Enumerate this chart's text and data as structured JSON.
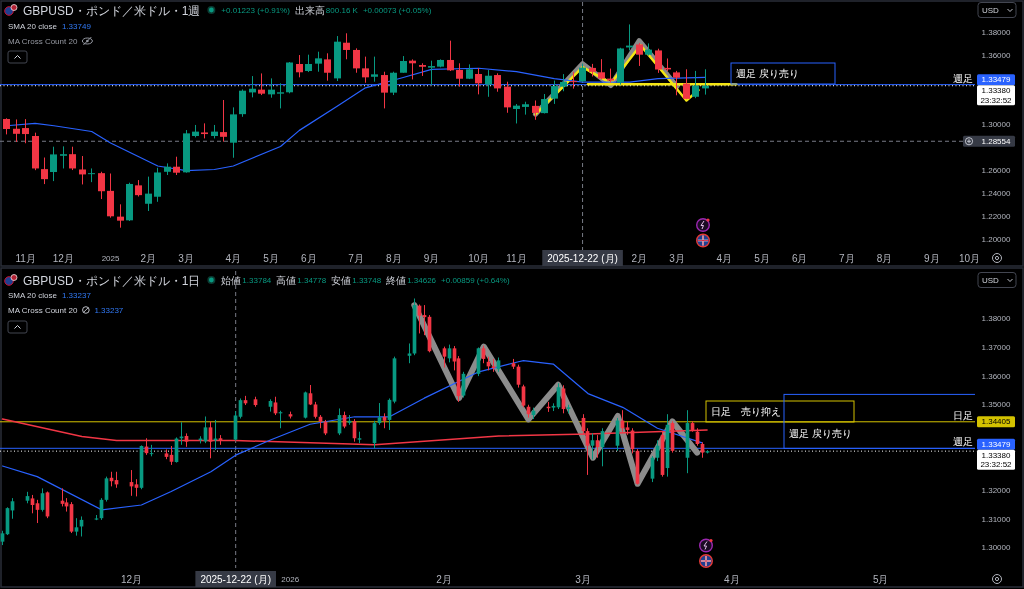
{
  "chart_data": [
    {
      "type": "candlestick",
      "title": "GBPUSD・ポンド／米ドル・1週",
      "annotations": [
        "+0.01223 (+0.91%)",
        "出来高",
        "800.16 K",
        "+0.00073 (+0.05%)",
        "SMA 20 close",
        "1.33749",
        "MA Cross Count 20",
        "USD",
        "週足 戻り売り",
        {
          "text": "週足",
          "y": 1.33479
        },
        "23:32:52"
      ],
      "xlim": [
        "2024-10-16",
        "2026-10-09"
      ],
      "xticks": [
        {
          "value": "2024-11-04",
          "label": "11月"
        },
        {
          "value": "2024-12-02",
          "label": "12月"
        },
        {
          "value": "2025-01-06",
          "label": "2025"
        },
        {
          "value": "2025-02-03",
          "label": "2月"
        },
        {
          "value": "2025-03-03",
          "label": "3月"
        },
        {
          "value": "2025-04-07",
          "label": "4月"
        },
        {
          "value": "2025-05-05",
          "label": "5月"
        },
        {
          "value": "2025-06-02",
          "label": "6月"
        },
        {
          "value": "2025-07-07",
          "label": "7月"
        },
        {
          "value": "2025-08-04",
          "label": "8月"
        },
        {
          "value": "2025-09-01",
          "label": "9月"
        },
        {
          "value": "2025-10-06",
          "label": "10月"
        },
        {
          "value": "2025-11-03",
          "label": "11月"
        },
        {
          "value": "2026-02-02",
          "label": "2月"
        },
        {
          "value": "2026-03-02",
          "label": "3月"
        },
        {
          "value": "2026-04-06",
          "label": "4月"
        },
        {
          "value": "2026-05-04",
          "label": "5月"
        },
        {
          "value": "2026-06-01",
          "label": "6月"
        },
        {
          "value": "2026-07-06",
          "label": "7月"
        },
        {
          "value": "2026-08-03",
          "label": "8月"
        },
        {
          "value": "2026-09-07",
          "label": "9月"
        },
        {
          "value": "2026-10-05",
          "label": "10月"
        }
      ],
      "ylim": [
        1.191,
        1.4066
      ],
      "yticks": [
        {
          "value": 1.2,
          "label": "1.20000"
        },
        {
          "value": 1.22,
          "label": "1.22000"
        },
        {
          "value": 1.24,
          "label": "1.24000"
        },
        {
          "value": 1.26,
          "label": "1.26000"
        },
        {
          "value": 1.3,
          "label": "1.30000"
        },
        {
          "value": 1.36,
          "label": "1.36000"
        },
        {
          "value": 1.38,
          "label": "1.38000"
        }
      ],
      "series": [
        {
          "type": "candlestick",
          "x": [
            "2024-10-21",
            "2024-10-28",
            "2024-11-04",
            "2024-11-11",
            "2024-11-18",
            "2024-11-25",
            "2024-12-02",
            "2024-12-09",
            "2024-12-16",
            "2024-12-23",
            "2024-12-30",
            "2025-01-06",
            "2025-01-13",
            "2025-01-20",
            "2025-01-27",
            "2025-02-03",
            "2025-02-10",
            "2025-02-17",
            "2025-02-24",
            "2025-03-03",
            "2025-03-10",
            "2025-03-17",
            "2025-03-24",
            "2025-03-31",
            "2025-04-07",
            "2025-04-14",
            "2025-04-21",
            "2025-04-28",
            "2025-05-05",
            "2025-05-12",
            "2025-05-19",
            "2025-05-26",
            "2025-06-02",
            "2025-06-09",
            "2025-06-16",
            "2025-06-23",
            "2025-06-30",
            "2025-07-07",
            "2025-07-14",
            "2025-07-21",
            "2025-07-28",
            "2025-08-04",
            "2025-08-11",
            "2025-08-18",
            "2025-08-25",
            "2025-09-01",
            "2025-09-08",
            "2025-09-15",
            "2025-09-22",
            "2025-09-29",
            "2025-10-06",
            "2025-10-13",
            "2025-10-20",
            "2025-10-27",
            "2025-11-03",
            "2025-11-10",
            "2025-11-17",
            "2025-11-24",
            "2025-12-01",
            "2025-12-08",
            "2025-12-15",
            "2025-12-22",
            "2025-12-29",
            "2026-01-05",
            "2026-01-12",
            "2026-01-19",
            "2026-01-26",
            "2026-02-02",
            "2026-02-09",
            "2026-02-16",
            "2026-02-23",
            "2026-03-02",
            "2026-03-09",
            "2026-03-16",
            "2026-03-23"
          ],
          "ohlc": [
            [
              1.3049,
              1.3055,
              1.2915,
              1.2962
            ],
            [
              1.2964,
              1.3045,
              1.285,
              1.292
            ],
            [
              1.297,
              1.3048,
              1.2838,
              1.2918
            ],
            [
              1.2901,
              1.293,
              1.2604,
              1.2619
            ],
            [
              1.2613,
              1.2714,
              1.2483,
              1.2526
            ],
            [
              1.2588,
              1.2808,
              1.2509,
              1.2741
            ],
            [
              1.2729,
              1.2811,
              1.2619,
              1.2743
            ],
            [
              1.2743,
              1.2808,
              1.2605,
              1.2619
            ],
            [
              1.261,
              1.2727,
              1.248,
              1.2567
            ],
            [
              1.257,
              1.2619,
              1.25,
              1.2578
            ],
            [
              1.2578,
              1.259,
              1.2353,
              1.2421
            ],
            [
              1.2424,
              1.2575,
              1.2191,
              1.2203
            ],
            [
              1.22,
              1.2307,
              1.2104,
              1.2165
            ],
            [
              1.2168,
              1.2495,
              1.2162,
              1.2484
            ],
            [
              1.2472,
              1.2518,
              1.2375,
              1.2387
            ],
            [
              1.2312,
              1.2548,
              1.2249,
              1.24
            ],
            [
              1.2373,
              1.2625,
              1.2329,
              1.2584
            ],
            [
              1.259,
              1.2663,
              1.2562,
              1.2634
            ],
            [
              1.2634,
              1.2721,
              1.2562,
              1.2582
            ],
            [
              1.2585,
              1.2953,
              1.2582,
              1.2924
            ],
            [
              1.2901,
              1.2997,
              1.2889,
              1.2939
            ],
            [
              1.2932,
              1.3011,
              1.288,
              1.2918
            ],
            [
              1.2901,
              1.2997,
              1.288,
              1.2939
            ],
            [
              1.2935,
              1.3214,
              1.2852,
              1.2894
            ],
            [
              1.2843,
              1.315,
              1.2712,
              1.3089
            ],
            [
              1.3091,
              1.3306,
              1.3068,
              1.3295
            ],
            [
              1.328,
              1.3422,
              1.3237,
              1.3312
            ],
            [
              1.3304,
              1.3445,
              1.3257,
              1.3269
            ],
            [
              1.3263,
              1.3402,
              1.3234,
              1.3304
            ],
            [
              1.3269,
              1.3359,
              1.3141,
              1.3281
            ],
            [
              1.3281,
              1.3544,
              1.3272,
              1.354
            ],
            [
              1.3527,
              1.3605,
              1.3411,
              1.3455
            ],
            [
              1.3466,
              1.3608,
              1.3457,
              1.3527
            ],
            [
              1.353,
              1.3634,
              1.346,
              1.3576
            ],
            [
              1.3567,
              1.362,
              1.3382,
              1.3451
            ],
            [
              1.3402,
              1.377,
              1.3379,
              1.3721
            ],
            [
              1.3712,
              1.3794,
              1.3568,
              1.3649
            ],
            [
              1.3649,
              1.3663,
              1.3451,
              1.3489
            ],
            [
              1.3489,
              1.3591,
              1.3364,
              1.3411
            ],
            [
              1.3416,
              1.3591,
              1.3373,
              1.3437
            ],
            [
              1.3431,
              1.346,
              1.3141,
              1.3278
            ],
            [
              1.3278,
              1.346,
              1.3257,
              1.3451
            ],
            [
              1.3451,
              1.3596,
              1.3451,
              1.3553
            ],
            [
              1.3556,
              1.3567,
              1.3393,
              1.3533
            ],
            [
              1.3518,
              1.3533,
              1.3423,
              1.3503
            ],
            [
              1.3495,
              1.3556,
              1.3344,
              1.3509
            ],
            [
              1.3504,
              1.3567,
              1.3498,
              1.3562
            ],
            [
              1.3562,
              1.373,
              1.3466,
              1.3472
            ],
            [
              1.3475,
              1.3533,
              1.333,
              1.3399
            ],
            [
              1.3399,
              1.3524,
              1.3396,
              1.3481
            ],
            [
              1.344,
              1.3492,
              1.3263,
              1.3359
            ],
            [
              1.3349,
              1.3474,
              1.3242,
              1.3425
            ],
            [
              1.3431,
              1.3446,
              1.3286,
              1.3315
            ],
            [
              1.333,
              1.3373,
              1.3103,
              1.315
            ],
            [
              1.3136,
              1.3179,
              1.301,
              1.3165
            ],
            [
              1.3154,
              1.3199,
              1.3087,
              1.3177
            ],
            [
              1.3163,
              1.321,
              1.3042,
              1.3102
            ],
            [
              1.31,
              1.3266,
              1.3097,
              1.3222
            ],
            [
              1.3226,
              1.3383,
              1.318,
              1.3335
            ],
            [
              1.333,
              1.3439,
              1.329,
              1.3371
            ],
            [
              1.3378,
              1.3459,
              1.3313,
              1.3374
            ],
            [
              1.3377,
              1.3531,
              1.3371,
              1.3496
            ],
            [
              1.3493,
              1.3528,
              1.3418,
              1.3459
            ],
            [
              1.3455,
              1.3569,
              1.3394,
              1.34
            ],
            [
              1.34,
              1.3487,
              1.3366,
              1.3383
            ],
            [
              1.3366,
              1.3668,
              1.3348,
              1.3662
            ],
            [
              1.3671,
              1.3871,
              1.3645,
              1.3687
            ],
            [
              1.3697,
              1.371,
              1.351,
              1.3608
            ],
            [
              1.3608,
              1.3706,
              1.36,
              1.3652
            ],
            [
              1.3645,
              1.366,
              1.345,
              1.3479
            ],
            [
              1.3493,
              1.3575,
              1.3465,
              1.348
            ],
            [
              1.3454,
              1.3467,
              1.3255,
              1.3408
            ],
            [
              1.3357,
              1.3481,
              1.3221,
              1.3224
            ],
            [
              1.3242,
              1.3467,
              1.323,
              1.3339
            ],
            [
              1.3315,
              1.3481,
              1.3261,
              1.3338
            ]
          ],
          "colors": [
            "#f23645",
            "#f23645",
            "#f23645",
            "#f23645",
            "#f23645",
            "#089981",
            "#089981",
            "#f23645",
            "#f23645",
            "#089981",
            "#f23645",
            "#f23645",
            "#f23645",
            "#089981",
            "#f23645",
            "#089981",
            "#089981",
            "#089981",
            "#f23645",
            "#089981",
            "#089981",
            "#f23645",
            "#089981",
            "#f23645",
            "#089981",
            "#089981",
            "#089981",
            "#f23645",
            "#089981",
            "#089981",
            "#089981",
            "#f23645",
            "#089981",
            "#089981",
            "#f23645",
            "#089981",
            "#f23645",
            "#f23645",
            "#f23645",
            "#089981",
            "#f23645",
            "#089981",
            "#089981",
            "#f23645",
            "#f23645",
            "#089981",
            "#089981",
            "#f23645",
            "#f23645",
            "#089981",
            "#f23645",
            "#089981",
            "#f23645",
            "#f23645",
            "#089981",
            "#089981",
            "#f23645",
            "#089981",
            "#089981",
            "#089981",
            "#f23645",
            "#089981",
            "#f23645",
            "#f23645",
            "#f23645",
            "#089981",
            "#089981",
            "#f23645",
            "#089981",
            "#f23645",
            "#f23645",
            "#f23645",
            "#f23645",
            "#089981",
            "#089981"
          ]
        },
        {
          "type": "line",
          "color": "#8a8a8a",
          "x": [
            "2025-11-17",
            "2025-12-22",
            "2026-01-12",
            "2026-02-02",
            "2026-03-02"
          ],
          "values": [
            1.309,
            1.353,
            1.334,
            1.373,
            1.333
          ]
        },
        {
          "type": "line",
          "color": "#f5e614",
          "x": [
            "2025-11-17",
            "2025-12-22",
            "2026-01-12",
            "2026-02-03",
            "2026-03-09",
            "2026-03-18"
          ],
          "values": [
            1.309,
            1.35,
            1.336,
            1.369,
            1.321,
            1.33
          ]
        },
        {
          "type": "line",
          "color": "#f5e614",
          "x": [
            "2025-12-26",
            "2026-04-15"
          ],
          "values": [
            1.335,
            1.335
          ]
        },
        {
          "type": "line",
          "color": "#2962ff",
          "x": [
            "2024-10-21",
            "2024-11-11",
            "2024-11-25",
            "2024-12-23",
            "2025-01-06",
            "2025-02-10",
            "2025-03-03",
            "2025-03-24",
            "2025-04-07",
            "2025-05-12",
            "2025-05-26",
            "2025-06-23",
            "2025-07-14",
            "2025-08-11",
            "2025-09-01",
            "2025-10-06",
            "2025-11-03",
            "2025-12-01",
            "2025-12-22",
            "2026-01-26",
            "2026-02-16",
            "2026-03-23"
          ],
          "values": [
            1.299,
            1.301,
            1.299,
            1.294,
            1.284,
            1.264,
            1.26,
            1.261,
            1.264,
            1.281,
            1.295,
            1.316,
            1.332,
            1.341,
            1.348,
            1.349,
            1.346,
            1.34,
            1.337,
            1.337,
            1.34,
            1.341
          ]
        }
      ],
      "ref_lines": [
        {
          "axis": "x",
          "value": "2025-12-22",
          "label": "2025-12-22 (月)",
          "color": "#787b86",
          "line_style": "dashed"
        },
        {
          "axis": "y",
          "value": 1.33479,
          "label": "1.33479",
          "color": "#2962ff"
        },
        {
          "axis": "y",
          "value": 1.3338,
          "label": "1.33380",
          "color": "#ffffff",
          "line_style": "dotted"
        },
        {
          "axis": "y",
          "value": 1.28554,
          "label": "1.28554",
          "color": "#787b86",
          "line_style": "dashed"
        }
      ]
    },
    {
      "type": "candlestick",
      "title": "GBPUSD・ポンド／米ドル・1日",
      "annotations": [
        "始値",
        "1.33784",
        "高値",
        "1.34778",
        "安値",
        "1.33748",
        "終値",
        "1.34626",
        "+0.00859 (+0.64%)",
        "SMA 20 close",
        "1.33237",
        "MA Cross Count 20",
        "1.33237",
        "USD",
        "日足　売り抑え",
        "週足 戻り売り",
        {
          "text": "日足",
          "y": 1.34405
        },
        {
          "text": "週足",
          "y": 1.33479
        },
        "23:32:52"
      ],
      "xlim": [
        "2025-11-04T12:00",
        "2026-05-20"
      ],
      "xticks": [
        {
          "value": "2025-12-01",
          "label": "12月"
        },
        {
          "value": "2026-01-02",
          "label": "2026"
        },
        {
          "value": "2026-02-02",
          "label": "2月"
        },
        {
          "value": "2026-03-02",
          "label": "3月"
        },
        {
          "value": "2026-04-01",
          "label": "4月"
        },
        {
          "value": "2026-05-01",
          "label": "5月"
        }
      ],
      "ylim": [
        1.293,
        1.3967
      ],
      "yticks": [
        {
          "value": 1.3,
          "label": "1.30000"
        },
        {
          "value": 1.31,
          "label": "1.31000"
        },
        {
          "value": 1.32,
          "label": "1.32000"
        },
        {
          "value": 1.35,
          "label": "1.35000"
        },
        {
          "value": 1.36,
          "label": "1.36000"
        },
        {
          "value": 1.37,
          "label": "1.37000"
        },
        {
          "value": 1.38,
          "label": "1.38000"
        }
      ],
      "series": [
        {
          "type": "candlestick",
          "x": [
            "2025-11-05",
            "2025-11-06",
            "2025-11-07",
            "2025-11-10",
            "2025-11-11",
            "2025-11-12",
            "2025-11-13",
            "2025-11-14",
            "2025-11-17",
            "2025-11-18",
            "2025-11-19",
            "2025-11-20",
            "2025-11-21",
            "2025-11-24",
            "2025-11-25",
            "2025-11-26",
            "2025-11-27",
            "2025-11-28",
            "2025-12-01",
            "2025-12-02",
            "2025-12-03",
            "2025-12-04",
            "2025-12-05",
            "2025-12-08",
            "2025-12-09",
            "2025-12-10",
            "2025-12-11",
            "2025-12-12",
            "2025-12-15",
            "2025-12-16",
            "2025-12-17",
            "2025-12-18",
            "2025-12-19",
            "2025-12-22",
            "2025-12-23",
            "2025-12-24",
            "2025-12-26",
            "2025-12-29",
            "2025-12-30",
            "2025-12-31",
            "2026-01-02",
            "2026-01-05",
            "2026-01-06",
            "2026-01-07",
            "2026-01-08",
            "2026-01-09",
            "2026-01-12",
            "2026-01-13",
            "2026-01-14",
            "2026-01-15",
            "2026-01-16",
            "2026-01-19",
            "2026-01-20",
            "2026-01-21",
            "2026-01-22",
            "2026-01-23",
            "2026-01-26",
            "2026-01-27",
            "2026-01-28",
            "2026-01-29",
            "2026-01-30",
            "2026-02-02",
            "2026-02-03",
            "2026-02-04",
            "2026-02-05",
            "2026-02-06",
            "2026-02-09",
            "2026-02-10",
            "2026-02-11",
            "2026-02-12",
            "2026-02-13",
            "2026-02-16",
            "2026-02-17",
            "2026-02-18",
            "2026-02-19",
            "2026-02-20",
            "2026-02-23",
            "2026-02-24",
            "2026-02-25",
            "2026-02-26",
            "2026-02-27",
            "2026-03-02",
            "2026-03-03",
            "2026-03-04",
            "2026-03-05",
            "2026-03-06",
            "2026-03-09",
            "2026-03-10",
            "2026-03-11",
            "2026-03-12",
            "2026-03-13",
            "2026-03-16",
            "2026-03-17",
            "2026-03-18",
            "2026-03-19",
            "2026-03-20",
            "2026-03-23",
            "2026-03-24",
            "2026-03-25",
            "2026-03-26",
            "2026-03-27"
          ],
          "ohlc": [
            [
              1.3022,
              1.306,
              1.301,
              1.3051
            ],
            [
              1.3048,
              1.3142,
              1.3045,
              1.3139
            ],
            [
              1.3131,
              1.3174,
              1.3102,
              1.3163
            ],
            [
              1.3165,
              1.3196,
              1.3156,
              1.3181
            ],
            [
              1.3173,
              1.3185,
              1.3121,
              1.315
            ],
            [
              1.3156,
              1.3168,
              1.3087,
              1.3133
            ],
            [
              1.3133,
              1.3208,
              1.3127,
              1.3191
            ],
            [
              1.3194,
              1.3197,
              1.3104,
              1.311
            ],
            [
              1.3165,
              1.3208,
              1.3145,
              1.3154
            ],
            [
              1.3159,
              1.3174,
              1.3127,
              1.3145
            ],
            [
              1.3153,
              1.316,
              1.3052,
              1.3057
            ],
            [
              1.3057,
              1.3104,
              1.3043,
              1.3072
            ],
            [
              1.3075,
              1.311,
              1.304,
              1.3098
            ],
            [
              1.3099,
              1.3115,
              1.3097,
              1.3103
            ],
            [
              1.3104,
              1.3174,
              1.3098,
              1.3168
            ],
            [
              1.3168,
              1.3249,
              1.3162,
              1.3243
            ],
            [
              1.3245,
              1.3266,
              1.3215,
              1.3233
            ],
            [
              1.3237,
              1.3266,
              1.321,
              1.3222
            ],
            [
              1.323,
              1.3272,
              1.3182,
              1.3215
            ],
            [
              1.3222,
              1.324,
              1.318,
              1.321
            ],
            [
              1.321,
              1.3358,
              1.3205,
              1.3356
            ],
            [
              1.3354,
              1.3383,
              1.3325,
              1.3331
            ],
            [
              1.3328,
              1.336,
              1.332,
              1.3331
            ],
            [
              1.333,
              1.3344,
              1.331,
              1.3318
            ],
            [
              1.3325,
              1.3356,
              1.329,
              1.3301
            ],
            [
              1.33,
              1.3386,
              1.3298,
              1.3382
            ],
            [
              1.3383,
              1.3439,
              1.336,
              1.3389
            ],
            [
              1.3391,
              1.34,
              1.3353,
              1.3371
            ],
            [
              1.3376,
              1.339,
              1.3365,
              1.3382
            ],
            [
              1.3372,
              1.3459,
              1.3366,
              1.3421
            ],
            [
              1.3421,
              1.3441,
              1.3313,
              1.3371
            ],
            [
              1.3376,
              1.3447,
              1.3342,
              1.3382
            ],
            [
              1.3383,
              1.3394,
              1.336,
              1.3374
            ],
            [
              1.33784,
              1.34778,
              1.33748,
              1.34626
            ],
            [
              1.3458,
              1.3522,
              1.3452,
              1.3516
            ],
            [
              1.3516,
              1.3531,
              1.3499,
              1.3505
            ],
            [
              1.3519,
              1.3528,
              1.3493,
              1.3499
            ],
            [
              1.3493,
              1.3519,
              1.3476,
              1.3513
            ],
            [
              1.3508,
              1.3528,
              1.3464,
              1.347
            ],
            [
              1.347,
              1.3479,
              1.3418,
              1.3474
            ],
            [
              1.3467,
              1.3476,
              1.3452,
              1.3459
            ],
            [
              1.3455,
              1.3546,
              1.3452,
              1.3543
            ],
            [
              1.354,
              1.3569,
              1.3499,
              1.3501
            ],
            [
              1.3501,
              1.351,
              1.3452,
              1.3458
            ],
            [
              1.3458,
              1.3464,
              1.3418,
              1.3441
            ],
            [
              1.3441,
              1.3447,
              1.3394,
              1.34
            ],
            [
              1.34,
              1.3487,
              1.3394,
              1.3464
            ],
            [
              1.3464,
              1.3476,
              1.3418,
              1.3424
            ],
            [
              1.3437,
              1.3464,
              1.343,
              1.3444
            ],
            [
              1.3443,
              1.345,
              1.3371,
              1.3383
            ],
            [
              1.3378,
              1.3406,
              1.3366,
              1.3383
            ],
            [
              1.3366,
              1.3444,
              1.3348,
              1.3436
            ],
            [
              1.3436,
              1.3506,
              1.343,
              1.3456
            ],
            [
              1.3458,
              1.347,
              1.3418,
              1.3444
            ],
            [
              1.3447,
              1.3522,
              1.3412,
              1.3517
            ],
            [
              1.3511,
              1.3668,
              1.3505,
              1.3662
            ],
            [
              1.3671,
              1.3714,
              1.3645,
              1.3679
            ],
            [
              1.3679,
              1.3871,
              1.3673,
              1.3848
            ],
            [
              1.3846,
              1.385,
              1.3749,
              1.3811
            ],
            [
              1.3813,
              1.3848,
              1.3743,
              1.3806
            ],
            [
              1.3807,
              1.3813,
              1.3683,
              1.3687
            ],
            [
              1.3697,
              1.3703,
              1.363,
              1.3668
            ],
            [
              1.3662,
              1.371,
              1.3648,
              1.3697
            ],
            [
              1.3697,
              1.3705,
              1.362,
              1.3651
            ],
            [
              1.3662,
              1.367,
              1.351,
              1.353
            ],
            [
              1.3532,
              1.3615,
              1.3525,
              1.3608
            ],
            [
              1.3608,
              1.37,
              1.36,
              1.3697
            ],
            [
              1.3697,
              1.3706,
              1.3645,
              1.366
            ],
            [
              1.365,
              1.3668,
              1.362,
              1.3634
            ],
            [
              1.3634,
              1.366,
              1.3615,
              1.3628
            ],
            [
              1.3624,
              1.3665,
              1.3615,
              1.3655
            ],
            [
              1.3645,
              1.366,
              1.3625,
              1.3633
            ],
            [
              1.3633,
              1.364,
              1.356,
              1.357
            ],
            [
              1.3564,
              1.357,
              1.3491,
              1.3497
            ],
            [
              1.3493,
              1.35,
              1.3455,
              1.3467
            ],
            [
              1.3464,
              1.349,
              1.345,
              1.3479
            ],
            [
              1.3493,
              1.351,
              1.3475,
              1.3488
            ],
            [
              1.349,
              1.3505,
              1.3478,
              1.3496
            ],
            [
              1.3491,
              1.3575,
              1.3485,
              1.3561
            ],
            [
              1.3557,
              1.3568,
              1.347,
              1.3485
            ],
            [
              1.3485,
              1.35,
              1.347,
              1.3491
            ],
            [
              1.3454,
              1.3467,
              1.3394,
              1.3408
            ],
            [
              1.3408,
              1.3418,
              1.3255,
              1.3357
            ],
            [
              1.3357,
              1.34,
              1.3309,
              1.3376
            ],
            [
              1.3376,
              1.3394,
              1.3315,
              1.3352
            ],
            [
              1.3352,
              1.3418,
              1.3285,
              1.3408
            ],
            [
              1.3357,
              1.3454,
              1.3339,
              1.3445
            ],
            [
              1.3445,
              1.3481,
              1.3406,
              1.3418
            ],
            [
              1.3421,
              1.344,
              1.3395,
              1.3412
            ],
            [
              1.341,
              1.3418,
              1.333,
              1.3345
            ],
            [
              1.3339,
              1.3345,
              1.3221,
              1.3224
            ],
            [
              1.3242,
              1.3321,
              1.323,
              1.3315
            ],
            [
              1.3315,
              1.3376,
              1.3303,
              1.3357
            ],
            [
              1.3394,
              1.3406,
              1.3249,
              1.3255
            ],
            [
              1.3279,
              1.3467,
              1.3249,
              1.343
            ],
            [
              1.3436,
              1.3442,
              1.3333,
              1.3339
            ],
            [
              1.3315,
              1.3481,
              1.3261,
              1.3436
            ],
            [
              1.3436,
              1.3442,
              1.3406,
              1.3412
            ],
            [
              1.3406,
              1.3418,
              1.3357,
              1.3363
            ],
            [
              1.3363,
              1.3369,
              1.3315,
              1.3333
            ],
            [
              1.3333,
              1.334,
              1.333,
              1.3338
            ]
          ],
          "colors": [
            "#089981",
            "#089981",
            "#089981",
            "#089981",
            "#f23645",
            "#f23645",
            "#089981",
            "#f23645",
            "#f23645",
            "#f23645",
            "#f23645",
            "#089981",
            "#089981",
            "#089981",
            "#089981",
            "#089981",
            "#f23645",
            "#f23645",
            "#f23645",
            "#f23645",
            "#089981",
            "#f23645",
            "#089981",
            "#f23645",
            "#f23645",
            "#089981",
            "#089981",
            "#f23645",
            "#089981",
            "#089981",
            "#f23645",
            "#089981",
            "#f23645",
            "#089981",
            "#089981",
            "#f23645",
            "#f23645",
            "#089981",
            "#f23645",
            "#089981",
            "#f23645",
            "#089981",
            "#f23645",
            "#f23645",
            "#f23645",
            "#f23645",
            "#089981",
            "#f23645",
            "#089981",
            "#f23645",
            "#089981",
            "#089981",
            "#089981",
            "#f23645",
            "#089981",
            "#089981",
            "#089981",
            "#089981",
            "#f23645",
            "#f23645",
            "#f23645",
            "#f23645",
            "#089981",
            "#f23645",
            "#f23645",
            "#089981",
            "#089981",
            "#f23645",
            "#f23645",
            "#f23645",
            "#089981",
            "#f23645",
            "#f23645",
            "#f23645",
            "#f23645",
            "#089981",
            "#f23645",
            "#089981",
            "#089981",
            "#f23645",
            "#089981",
            "#f23645",
            "#f23645",
            "#089981",
            "#f23645",
            "#089981",
            "#089981",
            "#f23645",
            "#f23645",
            "#f23645",
            "#f23645",
            "#089981",
            "#089981",
            "#f23645",
            "#089981",
            "#f23645",
            "#089981",
            "#f23645",
            "#f23645",
            "#f23645",
            "#089981"
          ]
        },
        {
          "type": "line",
          "color": "#8c8c8c",
          "x": [
            "2026-01-27",
            "2026-02-05",
            "2026-02-10",
            "2026-02-19",
            "2026-02-25",
            "2026-03-04",
            "2026-03-09",
            "2026-03-13",
            "2026-03-20",
            "2026-03-25"
          ],
          "values": [
            1.3848,
            1.3523,
            1.3703,
            1.3449,
            1.357,
            1.3315,
            1.3461,
            1.3224,
            1.3442,
            1.3333
          ]
        },
        {
          "type": "line",
          "color": "#f23645",
          "x": [
            "2025-11-05",
            "2025-11-21",
            "2025-11-28",
            "2025-12-22",
            "2026-01-19",
            "2026-02-13",
            "2026-03-03",
            "2026-03-27"
          ],
          "values": [
            1.345,
            1.3389,
            1.3375,
            1.3375,
            1.336,
            1.3391,
            1.3398,
            1.3412
          ]
        },
        {
          "type": "line",
          "color": "#2962ff",
          "x": [
            "2025-11-05",
            "2025-11-12",
            "2025-11-25",
            "2025-12-03",
            "2025-12-09",
            "2025-12-17",
            "2025-12-22",
            "2025-12-29",
            "2026-01-06",
            "2026-01-15",
            "2026-01-22",
            "2026-01-29",
            "2026-02-09",
            "2026-02-17",
            "2026-02-18",
            "2026-02-24",
            "2026-03-03",
            "2026-03-10",
            "2026-03-17",
            "2026-03-26"
          ],
          "values": [
            1.3286,
            1.3249,
            1.3133,
            1.315,
            1.3197,
            1.3266,
            1.3324,
            1.3377,
            1.3432,
            1.3458,
            1.3458,
            1.3523,
            1.3615,
            1.365,
            1.3654,
            1.3642,
            1.3539,
            1.3491,
            1.3418,
            1.3367
          ]
        }
      ],
      "ref_lines": [
        {
          "axis": "x",
          "value": "2025-12-22",
          "label": "2025-12-22 (月)",
          "color": "#787b86",
          "line_style": "dashed"
        },
        {
          "axis": "y",
          "value": 1.34405,
          "label": "1.34405",
          "color": "#d4c200"
        },
        {
          "axis": "y",
          "value": 1.33479,
          "label": "1.33479",
          "color": "#2962ff"
        },
        {
          "axis": "y",
          "value": 1.3338,
          "label": "1.33380",
          "color": "#ffffff",
          "line_style": "dotted"
        }
      ]
    }
  ]
}
